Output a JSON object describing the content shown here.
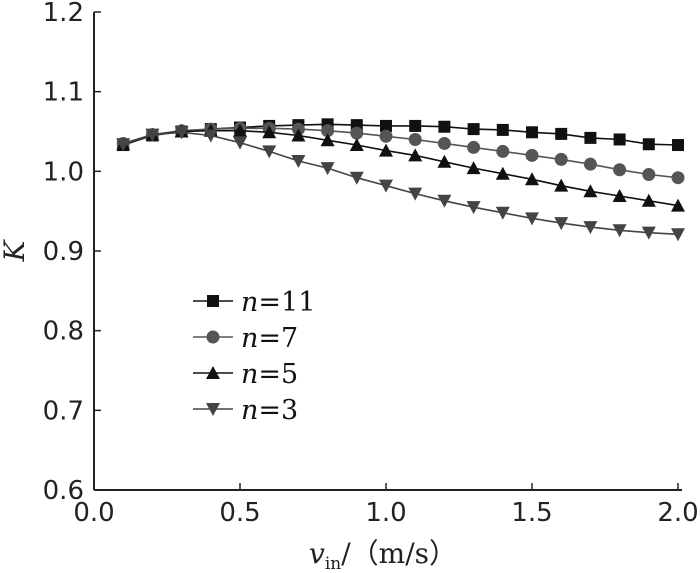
{
  "chart_data": {
    "type": "line",
    "xlabel_var": "v",
    "xlabel_sub": "in",
    "xlabel_unit": "/（m/s）",
    "ylabel": "K",
    "xlim": [
      0.0,
      2.0
    ],
    "ylim": [
      0.6,
      1.2
    ],
    "x_ticks": [
      "0.0",
      "0.5",
      "1.0",
      "1.5",
      "2.0"
    ],
    "y_ticks": [
      "0.6",
      "0.7",
      "0.8",
      "0.9",
      "1.0",
      "1.1",
      "1.2"
    ],
    "grid": false,
    "legend_position": "lower-left",
    "x": [
      0.1,
      0.2,
      0.3,
      0.4,
      0.5,
      0.6,
      0.7,
      0.8,
      0.9,
      1.0,
      1.1,
      1.2,
      1.3,
      1.4,
      1.5,
      1.6,
      1.7,
      1.8,
      1.9,
      2.0
    ],
    "series": [
      {
        "name_var": "n",
        "name_rest": "=11",
        "marker": "square",
        "color": "#111111",
        "values": [
          1.033,
          1.045,
          1.05,
          1.053,
          1.055,
          1.057,
          1.058,
          1.059,
          1.058,
          1.057,
          1.057,
          1.056,
          1.053,
          1.052,
          1.049,
          1.047,
          1.042,
          1.04,
          1.034,
          1.033
        ]
      },
      {
        "name_var": "n",
        "name_rest": "=7",
        "marker": "circle",
        "color": "#555555",
        "values": [
          1.035,
          1.046,
          1.051,
          1.053,
          1.054,
          1.054,
          1.053,
          1.051,
          1.048,
          1.044,
          1.04,
          1.035,
          1.03,
          1.025,
          1.02,
          1.015,
          1.009,
          1.002,
          0.996,
          0.992
        ]
      },
      {
        "name_var": "n",
        "name_rest": "=5",
        "marker": "triangle-up",
        "color": "#111111",
        "values": [
          1.034,
          1.046,
          1.05,
          1.051,
          1.051,
          1.049,
          1.045,
          1.039,
          1.033,
          1.026,
          1.02,
          1.012,
          1.004,
          0.997,
          0.99,
          0.982,
          0.975,
          0.969,
          0.963,
          0.957
        ]
      },
      {
        "name_var": "n",
        "name_rest": "=3",
        "marker": "triangle-down",
        "color": "#444444",
        "values": [
          1.034,
          1.046,
          1.049,
          1.045,
          1.036,
          1.025,
          1.013,
          1.004,
          0.992,
          0.982,
          0.972,
          0.963,
          0.955,
          0.948,
          0.941,
          0.935,
          0.93,
          0.926,
          0.923,
          0.921
        ]
      }
    ]
  }
}
